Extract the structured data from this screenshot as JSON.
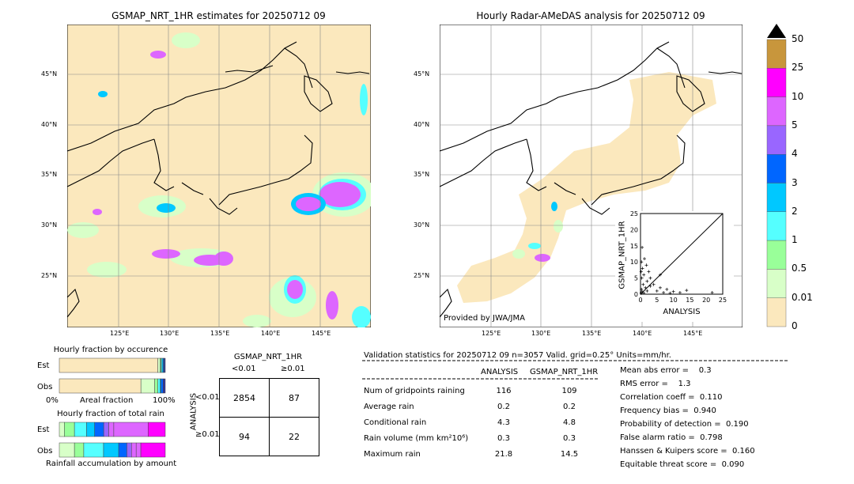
{
  "left_map": {
    "title": "GSMAP_NRT_1HR estimates for 20250712 09",
    "lat_labels": [
      "45°N",
      "40°N",
      "35°N",
      "30°N",
      "25°N"
    ],
    "lon_labels": [
      "125°E",
      "130°E",
      "135°E",
      "140°E",
      "145°E"
    ]
  },
  "right_map": {
    "title": "Hourly Radar-AMeDAS analysis for 20250712 09",
    "lat_labels": [
      "45°N",
      "40°N",
      "35°N",
      "30°N",
      "25°N"
    ],
    "lon_labels": [
      "125°E",
      "130°E",
      "135°E",
      "140°E",
      "145°E"
    ],
    "credit": "Provided by JWA/JMA"
  },
  "colorbar": {
    "labels": [
      "50",
      "25",
      "10",
      "5",
      "4",
      "3",
      "2",
      "1",
      "0.5",
      "0.01",
      "0"
    ],
    "colors": [
      "#c8963c",
      "#ff00ff",
      "#dd66ff",
      "#9966ff",
      "#0066ff",
      "#00c8ff",
      "#55ffff",
      "#99ff99",
      "#d8ffc8",
      "#fbe8bd"
    ]
  },
  "chart_data": [
    {
      "type": "scatter",
      "title": "",
      "xlabel": "ANALYSIS",
      "ylabel": "GSMAP_NRT_1HR",
      "xlim": [
        0,
        25
      ],
      "ylim": [
        0,
        25
      ],
      "x_ticks": [
        "0",
        "5",
        "10",
        "15",
        "20",
        "25"
      ],
      "y_ticks": [
        "0",
        "5",
        "10",
        "15",
        "20",
        "25"
      ],
      "points": [
        [
          0.2,
          0.3
        ],
        [
          0.5,
          0.8
        ],
        [
          1,
          0.4
        ],
        [
          0.3,
          1.5
        ],
        [
          1.5,
          2
        ],
        [
          2,
          1
        ],
        [
          0.8,
          3
        ],
        [
          3,
          2.5
        ],
        [
          0.4,
          5
        ],
        [
          1,
          6
        ],
        [
          0.2,
          7
        ],
        [
          0.6,
          8
        ],
        [
          0.3,
          10
        ],
        [
          1.2,
          11
        ],
        [
          0.5,
          14.5
        ],
        [
          2,
          4
        ],
        [
          4,
          3
        ],
        [
          5,
          1
        ],
        [
          6,
          2
        ],
        [
          7,
          0.5
        ],
        [
          8,
          1.5
        ],
        [
          9,
          0.3
        ],
        [
          10,
          0.8
        ],
        [
          12,
          0.5
        ],
        [
          14,
          1.2
        ],
        [
          21.8,
          0.5
        ],
        [
          3,
          5
        ],
        [
          2.5,
          7
        ],
        [
          1.8,
          9
        ],
        [
          6,
          6
        ]
      ]
    },
    {
      "type": "bar",
      "title": "Hourly fraction by occurence",
      "categories": [
        "Est",
        "Obs"
      ],
      "xlabel": "Areal fraction",
      "x_ticks": [
        "0%",
        "100%"
      ],
      "series": [
        {
          "values": [
            0.93,
            0.77
          ]
        },
        {
          "values": [
            0.02,
            0.13
          ]
        },
        {
          "values": [
            0.01,
            0.03
          ]
        },
        {
          "values": [
            0.01,
            0.02
          ]
        },
        {
          "values": [
            0.01,
            0.01
          ]
        },
        {
          "values": [
            0.01,
            0.02
          ]
        },
        {
          "values": [
            0.01,
            0.02
          ]
        }
      ],
      "colors": [
        "#fbe8bd",
        "#d8ffc8",
        "#99ff99",
        "#55ffff",
        "#00c8ff",
        "#0066ff",
        "#333399"
      ]
    },
    {
      "type": "bar",
      "title": "Hourly fraction of total rain",
      "categories": [
        "Est",
        "Obs"
      ],
      "xlabel": "Rainfall accumulation by amount",
      "series": [
        {
          "values": [
            0.05,
            0.13
          ]
        },
        {
          "values": [
            0.1,
            0.08
          ]
        },
        {
          "values": [
            0.12,
            0.17
          ]
        },
        {
          "values": [
            0.08,
            0.13
          ]
        },
        {
          "values": [
            0.09,
            0.07
          ]
        },
        {
          "values": [
            0.05,
            0.04
          ]
        },
        {
          "values": [
            0.05,
            0.04
          ]
        },
        {
          "values": [
            0.34,
            0.04
          ]
        },
        {
          "values": [
            0.17,
            0.21
          ]
        }
      ],
      "colors": [
        "#d8ffc8",
        "#99ff99",
        "#55ffff",
        "#00c8ff",
        "#0066ff",
        "#9966ff",
        "#dd66ff",
        "#dd66ff",
        "#ff00ff"
      ]
    }
  ],
  "contingency": {
    "title": "GSMAP_NRT_1HR",
    "col_headers": [
      "<0.01",
      "≥0.01"
    ],
    "row_axis_label": "ANALYSIS",
    "row_headers": [
      "<0.01",
      "≥0.01"
    ],
    "cells": [
      [
        "2854",
        "87"
      ],
      [
        "94",
        "22"
      ]
    ]
  },
  "validation": {
    "header": "Validation statistics for 20250712 09  n=3057 Valid. grid=0.25° Units=mm/hr.",
    "col_headers": [
      "ANALYSIS",
      "GSMAP_NRT_1HR"
    ],
    "rows": [
      {
        "label": "Num of gridpoints raining",
        "analysis": "116",
        "gsmap": "109"
      },
      {
        "label": "Average rain",
        "analysis": "0.2",
        "gsmap": "0.2"
      },
      {
        "label": "Conditional rain",
        "analysis": "4.3",
        "gsmap": "4.8"
      },
      {
        "label": "Rain volume (mm km²10⁶)",
        "analysis": "0.3",
        "gsmap": "0.3"
      },
      {
        "label": "Maximum rain",
        "analysis": "21.8",
        "gsmap": "14.5"
      }
    ],
    "scores": [
      "Mean abs error =    0.3",
      "RMS error =    1.3",
      "Correlation coeff =  0.110",
      "Frequency bias =  0.940",
      "Probability of detection =  0.190",
      "False alarm ratio =  0.798",
      "Hanssen & Kuipers score =  0.160",
      "Equitable threat score =  0.090"
    ]
  }
}
